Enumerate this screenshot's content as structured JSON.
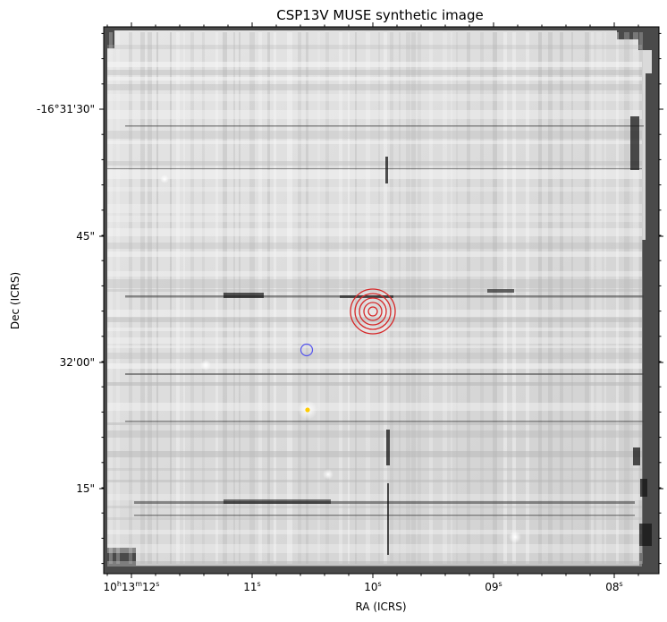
{
  "figure": {
    "title": "CSP13V MUSE synthetic image",
    "xlabel": "RA (ICRS)",
    "ylabel": "Dec (ICRS)",
    "ra_ticks": [
      {
        "pre": "10",
        "h": "h",
        "mid": "13",
        "m": "m",
        "post": "12",
        "s": "s"
      },
      {
        "pre": "",
        "h": "",
        "mid": "",
        "m": "",
        "post": "11",
        "s": "s"
      },
      {
        "pre": "",
        "h": "",
        "mid": "",
        "m": "",
        "post": "10",
        "s": "s"
      },
      {
        "pre": "",
        "h": "",
        "mid": "",
        "m": "",
        "post": "09",
        "s": "s"
      },
      {
        "pre": "",
        "h": "",
        "mid": "",
        "m": "",
        "post": "08",
        "s": "s"
      }
    ],
    "dec_ticks": [
      "-16°31'30\"",
      "45\"",
      "32'00\"",
      "15\""
    ],
    "colormap": "grayscale (inverted)",
    "frame_color": "#4a4a4a",
    "markers": {
      "red_concentric_circles": {
        "color": "#d62728",
        "count": 4
      },
      "blue_circle": {
        "color": "#5555ee"
      },
      "yellow_dot": {
        "color": "#ffcc00"
      }
    }
  }
}
